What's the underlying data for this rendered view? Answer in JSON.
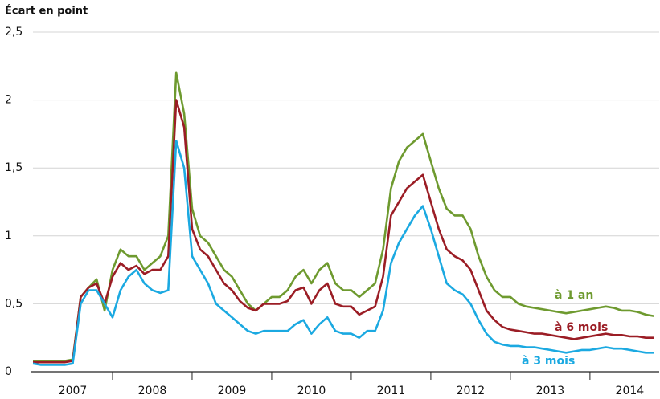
{
  "chart_data": {
    "type": "line",
    "y_axis_label": "Écart en point",
    "x": [
      2007.0,
      2007.1,
      2007.2,
      2007.3,
      2007.4,
      2007.5,
      2007.6,
      2007.7,
      2007.8,
      2007.9,
      2008.0,
      2008.1,
      2008.2,
      2008.3,
      2008.4,
      2008.5,
      2008.6,
      2008.7,
      2008.8,
      2008.9,
      2009.0,
      2009.1,
      2009.2,
      2009.3,
      2009.4,
      2009.5,
      2009.6,
      2009.7,
      2009.8,
      2009.9,
      2010.0,
      2010.1,
      2010.2,
      2010.3,
      2010.4,
      2010.5,
      2010.6,
      2010.7,
      2010.8,
      2010.9,
      2011.0,
      2011.1,
      2011.2,
      2011.3,
      2011.4,
      2011.5,
      2011.6,
      2011.7,
      2011.8,
      2011.9,
      2012.0,
      2012.1,
      2012.2,
      2012.3,
      2012.4,
      2012.5,
      2012.6,
      2012.7,
      2012.8,
      2012.9,
      2013.0,
      2013.1,
      2013.2,
      2013.3,
      2013.4,
      2013.5,
      2013.6,
      2013.7,
      2013.8,
      2013.9,
      2014.0,
      2014.1,
      2014.2,
      2014.3,
      2014.4,
      2014.5,
      2014.6,
      2014.7,
      2014.8
    ],
    "series": [
      {
        "name": "à 1 an",
        "color": "#6e9a2f",
        "values": [
          0.08,
          0.08,
          0.08,
          0.08,
          0.08,
          0.09,
          0.55,
          0.62,
          0.68,
          0.45,
          0.75,
          0.9,
          0.85,
          0.85,
          0.75,
          0.8,
          0.85,
          1.0,
          2.2,
          1.9,
          1.2,
          1.0,
          0.95,
          0.85,
          0.75,
          0.7,
          0.6,
          0.5,
          0.45,
          0.5,
          0.55,
          0.55,
          0.6,
          0.7,
          0.75,
          0.65,
          0.75,
          0.8,
          0.65,
          0.6,
          0.6,
          0.55,
          0.6,
          0.65,
          0.9,
          1.35,
          1.55,
          1.65,
          1.7,
          1.75,
          1.55,
          1.35,
          1.2,
          1.15,
          1.15,
          1.05,
          0.85,
          0.7,
          0.6,
          0.55,
          0.55,
          0.5,
          0.48,
          0.47,
          0.46,
          0.45,
          0.44,
          0.43,
          0.44,
          0.45,
          0.46,
          0.47,
          0.48,
          0.47,
          0.45,
          0.45,
          0.44,
          0.42,
          0.41
        ]
      },
      {
        "name": "à 6 mois",
        "color": "#9b1d25",
        "values": [
          0.07,
          0.07,
          0.07,
          0.07,
          0.07,
          0.08,
          0.55,
          0.62,
          0.65,
          0.5,
          0.7,
          0.8,
          0.75,
          0.78,
          0.72,
          0.75,
          0.75,
          0.85,
          2.0,
          1.8,
          1.05,
          0.9,
          0.85,
          0.75,
          0.65,
          0.6,
          0.52,
          0.47,
          0.45,
          0.5,
          0.5,
          0.5,
          0.52,
          0.6,
          0.62,
          0.5,
          0.6,
          0.65,
          0.5,
          0.48,
          0.48,
          0.42,
          0.45,
          0.48,
          0.7,
          1.15,
          1.25,
          1.35,
          1.4,
          1.45,
          1.25,
          1.05,
          0.9,
          0.85,
          0.82,
          0.75,
          0.6,
          0.45,
          0.38,
          0.33,
          0.31,
          0.3,
          0.29,
          0.28,
          0.28,
          0.27,
          0.26,
          0.25,
          0.24,
          0.25,
          0.26,
          0.27,
          0.28,
          0.27,
          0.27,
          0.26,
          0.26,
          0.25,
          0.25
        ]
      },
      {
        "name": "à 3 mois",
        "color": "#1ba9e1",
        "values": [
          0.06,
          0.05,
          0.05,
          0.05,
          0.05,
          0.06,
          0.5,
          0.6,
          0.6,
          0.5,
          0.4,
          0.6,
          0.7,
          0.75,
          0.65,
          0.6,
          0.58,
          0.6,
          1.7,
          1.5,
          0.85,
          0.75,
          0.65,
          0.5,
          0.45,
          0.4,
          0.35,
          0.3,
          0.28,
          0.3,
          0.3,
          0.3,
          0.3,
          0.35,
          0.38,
          0.28,
          0.35,
          0.4,
          0.3,
          0.28,
          0.28,
          0.25,
          0.3,
          0.3,
          0.45,
          0.8,
          0.95,
          1.05,
          1.15,
          1.22,
          1.05,
          0.85,
          0.65,
          0.6,
          0.57,
          0.5,
          0.38,
          0.28,
          0.22,
          0.2,
          0.19,
          0.19,
          0.18,
          0.18,
          0.17,
          0.16,
          0.15,
          0.14,
          0.15,
          0.16,
          0.16,
          0.17,
          0.18,
          0.17,
          0.17,
          0.16,
          0.15,
          0.14,
          0.14
        ]
      }
    ],
    "xlim": [
      2007,
      2014.87
    ],
    "xticks": [
      {
        "value": 2007.5,
        "label": "2007"
      },
      {
        "value": 2008.5,
        "label": "2008"
      },
      {
        "value": 2009.5,
        "label": "2009"
      },
      {
        "value": 2010.5,
        "label": "2010"
      },
      {
        "value": 2011.5,
        "label": "2011"
      },
      {
        "value": 2012.5,
        "label": "2012"
      },
      {
        "value": 2013.5,
        "label": "2013"
      },
      {
        "value": 2014.5,
        "label": "2014"
      }
    ],
    "ylim": [
      0,
      2.5
    ],
    "yticks": [
      0,
      {
        "value": 0.5,
        "label": "0,5"
      },
      1,
      {
        "value": 1.5,
        "label": "1,5"
      },
      2,
      {
        "value": 2.5,
        "label": "2,5"
      }
    ],
    "grid": true
  }
}
